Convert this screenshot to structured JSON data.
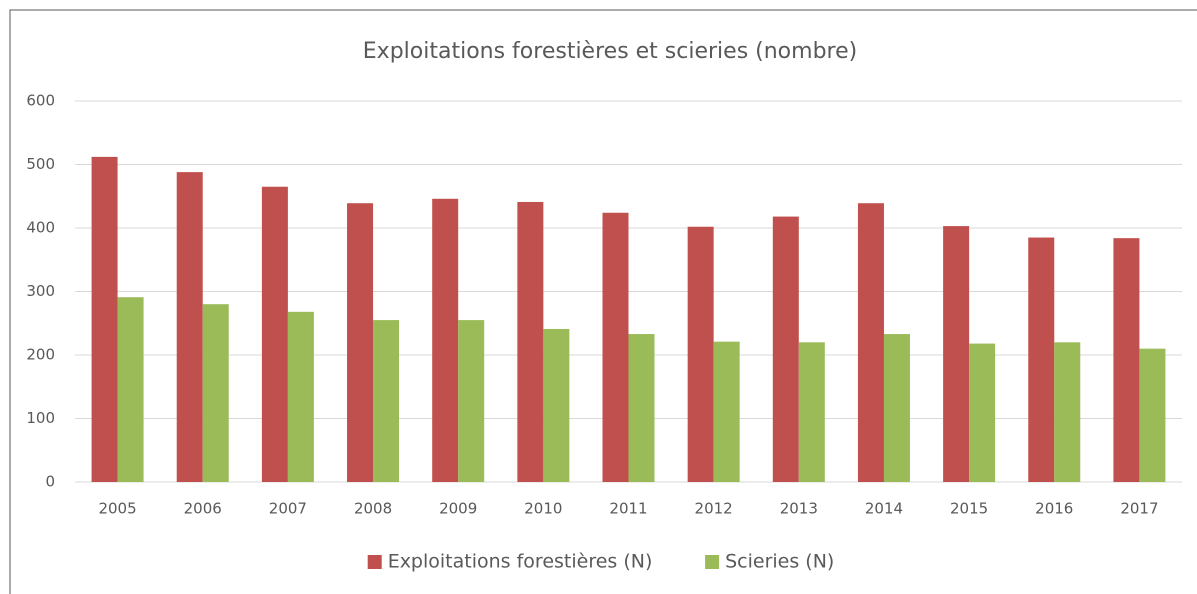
{
  "chart_data": {
    "type": "bar",
    "title": "Exploitations forestières et scieries (nombre)",
    "categories": [
      "2005",
      "2006",
      "2007",
      "2008",
      "2009",
      "2010",
      "2011",
      "2012",
      "2013",
      "2014",
      "2015",
      "2016",
      "2017"
    ],
    "series": [
      {
        "name": "Exploitations forestières (N)",
        "color": "#c0504d",
        "values": [
          512,
          488,
          465,
          439,
          446,
          441,
          424,
          402,
          418,
          439,
          403,
          385,
          384
        ]
      },
      {
        "name": "Scieries (N)",
        "color": "#9bbb59",
        "values": [
          291,
          280,
          268,
          255,
          255,
          241,
          233,
          221,
          220,
          233,
          218,
          220,
          210
        ]
      }
    ],
    "ylim": [
      0,
      600
    ],
    "yticks": [
      0,
      100,
      200,
      300,
      400,
      500,
      600
    ],
    "grid": true,
    "legend": "bottom"
  }
}
